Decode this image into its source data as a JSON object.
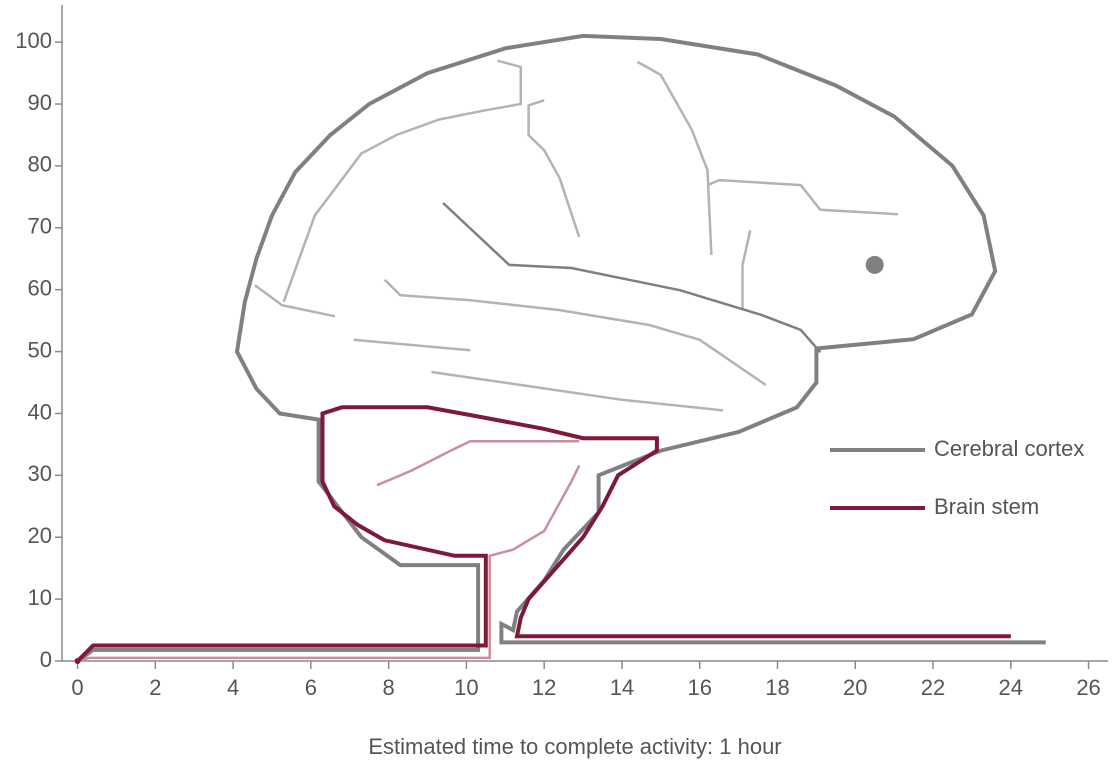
{
  "chart_data": {
    "type": "line",
    "xlabel": "Estimated time to complete activity: 1 hour",
    "xlim": [
      -0.4,
      26.5
    ],
    "ylim": [
      0,
      106
    ],
    "xticks": [
      0,
      2,
      4,
      6,
      8,
      10,
      12,
      14,
      16,
      18,
      20,
      22,
      24,
      26
    ],
    "yticks": [
      0,
      10,
      20,
      30,
      40,
      50,
      60,
      70,
      80,
      90,
      100
    ],
    "legend": "center right",
    "series": [
      {
        "name": "Cerebral cortex",
        "color": "#808080",
        "x": [
          0,
          0.4,
          10.3,
          10.3,
          8.3,
          7.3,
          6.2,
          6.2,
          5.2,
          4.6,
          4.1,
          4.3,
          4.6,
          5,
          5.6,
          6.5,
          7.5,
          9,
          11,
          13,
          15,
          17.5,
          19.5,
          21,
          22.5,
          23.3,
          23.6,
          23,
          21.5,
          19,
          19,
          18.5,
          17,
          15,
          13.4,
          13.4,
          12.5,
          12,
          11.3,
          11.2,
          10.9,
          10.9,
          24.9
        ],
        "values": [
          0,
          1.8,
          1.8,
          15.5,
          15.5,
          20,
          29,
          39,
          40,
          44,
          50,
          58,
          65,
          72,
          79,
          85,
          90,
          95,
          99,
          101,
          100.5,
          98,
          93,
          88,
          80,
          72,
          63,
          56,
          52,
          50.5,
          45,
          41,
          37,
          34,
          30,
          24,
          18,
          13,
          8,
          5,
          6,
          3,
          3
        ]
      },
      {
        "name": "Brain stem",
        "color": "#7d1a35",
        "x": [
          0,
          0.4,
          10.5,
          10.5,
          9.7,
          7.9,
          7.2,
          6.6,
          6.3,
          6.3,
          6.8,
          9,
          10.3,
          12,
          13,
          14.9,
          14.9,
          14.4,
          13.9,
          13.5,
          13,
          12.3,
          11.6,
          11.4,
          11.3,
          24
        ],
        "values": [
          0,
          2.5,
          2.5,
          17,
          17,
          19.5,
          22,
          25,
          29,
          40,
          41,
          41,
          39.5,
          37.5,
          36,
          36,
          34,
          32,
          30,
          25,
          20,
          15,
          10,
          7,
          4,
          4
        ]
      },
      {
        "color": "#b3b3b3",
        "x": [
          4.56,
          5.26,
          6.62
        ],
        "values": [
          60.7,
          57.5,
          55.7
        ]
      },
      {
        "color": "#b3b3b3",
        "x": [
          5.3,
          5.7,
          6.1,
          6.7,
          7.3,
          8.2,
          9.3,
          10.5,
          11.4,
          11.4,
          10.8
        ],
        "values": [
          58,
          65,
          72,
          77,
          82,
          85,
          87.5,
          89,
          90,
          96,
          97
        ]
      },
      {
        "color": "#b3b3b3",
        "x": [
          12.0,
          11.6,
          11.6,
          12,
          12.4,
          12.9
        ],
        "values": [
          90.6,
          89.8,
          85,
          82.5,
          78,
          68.5
        ]
      },
      {
        "color": "#b3b3b3",
        "x": [
          14.4,
          15,
          15.8,
          16.2,
          16.3
        ],
        "values": [
          96.8,
          94.7,
          85.8,
          79.3,
          65.6
        ]
      },
      {
        "color": "#b3b3b3",
        "x": [
          16.2,
          16.5,
          18.6,
          19.1,
          21.1
        ],
        "values": [
          76.9,
          77.7,
          76.9,
          72.9,
          72.2
        ]
      },
      {
        "color": "#b3b3b3",
        "x": [
          17.3,
          17.1,
          17.1
        ],
        "values": [
          69.6,
          64,
          56.7
        ]
      },
      {
        "color": "#b3b3b3",
        "x": [
          7.9,
          8.3,
          10.1,
          12.4,
          14.7,
          16,
          17.7
        ],
        "values": [
          61.6,
          59.1,
          58.3,
          56.7,
          54.3,
          51.9,
          44.6
        ]
      },
      {
        "color": "#b3b3b3",
        "x": [
          7.1,
          10.1
        ],
        "values": [
          51.9,
          50.2
        ]
      },
      {
        "color": "#b3b3b3",
        "x": [
          9.1,
          11.4,
          14,
          16.6
        ],
        "values": [
          46.7,
          44.6,
          42.2,
          40.5
        ]
      },
      {
        "color": "#7f7f7f",
        "x": [
          9.4,
          11.1,
          12.7,
          15.5,
          17.6,
          18.6,
          19.1
        ],
        "values": [
          74,
          64,
          63.5,
          59.9,
          55.9,
          53.5,
          49.9
        ]
      },
      {
        "color": "#c8909c",
        "x": [
          0,
          0.3,
          10.6,
          10.6,
          11.2,
          12.0,
          12.7,
          12.9
        ],
        "values": [
          0,
          0.5,
          0.5,
          17,
          18,
          21,
          29,
          31.6
        ]
      },
      {
        "color": "#c8909c",
        "x": [
          7.7,
          8.6,
          9.6,
          10.1,
          12.9
        ],
        "values": [
          28.4,
          30.8,
          34,
          35.5,
          35.5
        ]
      },
      {
        "color": "#808080",
        "marker": true,
        "x": [
          20.5
        ],
        "values": [
          64
        ]
      }
    ]
  }
}
